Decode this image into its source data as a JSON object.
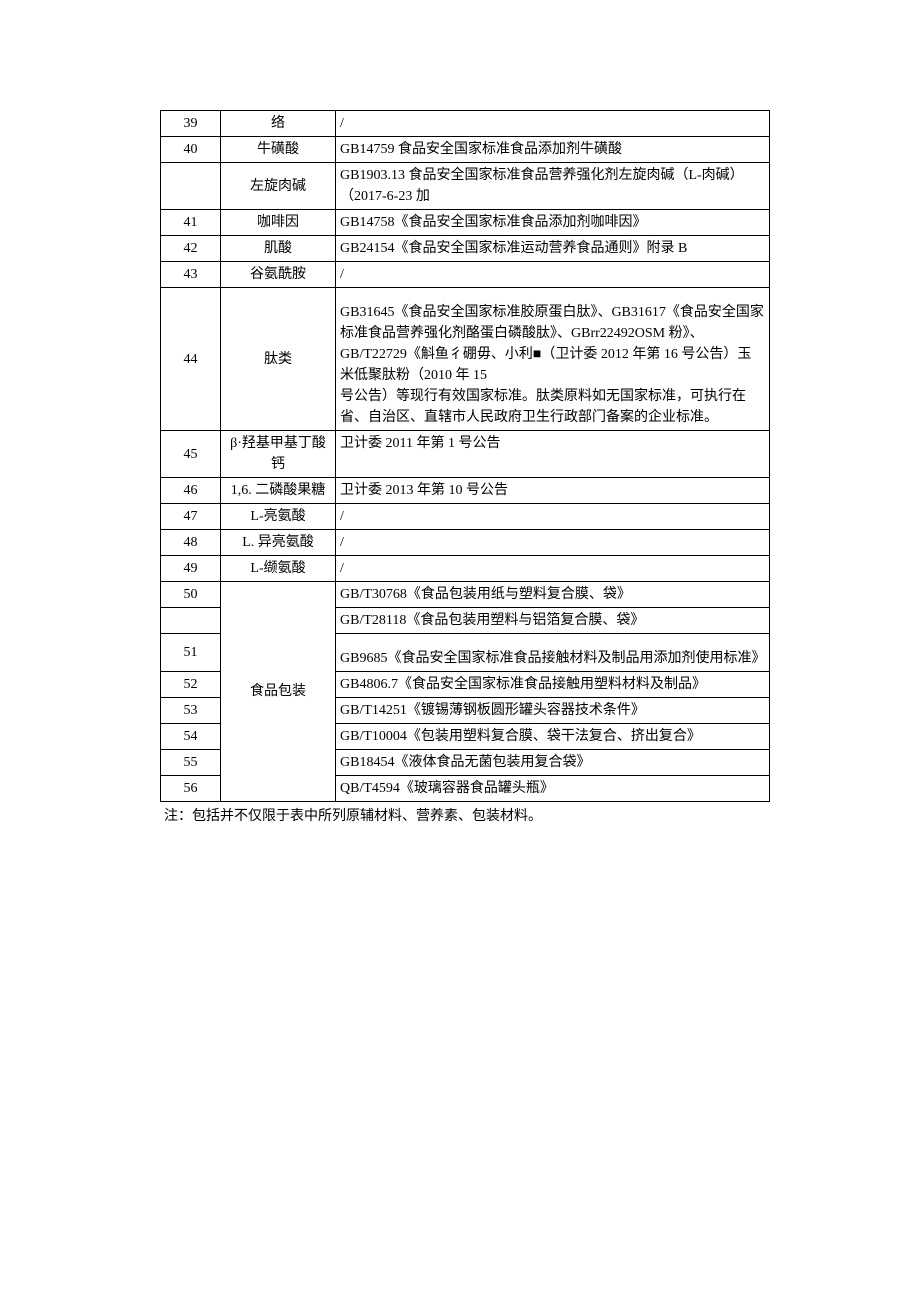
{
  "rows": [
    {
      "num": "39",
      "name": "络",
      "std": "/"
    },
    {
      "num": "40",
      "name": "牛磺酸",
      "std": "GB14759 食品安全国家标准食品添加剂牛磺酸"
    },
    {
      "num": "",
      "name": "左旋肉碱",
      "std": "GB1903.13 食品安全国家标准食品营养强化剂左旋肉碱（L-肉碱）（2017-6-23 加"
    },
    {
      "num": "41",
      "name": "咖啡因",
      "std": "GB14758《食品安全国家标准食品添加剂咖啡因》"
    },
    {
      "num": "42",
      "name": "肌酸",
      "std": "GB24154《食品安全国家标准运动营养食品通则》附录 B"
    },
    {
      "num": "43",
      "name": "谷氨酰胺",
      "std": "/"
    },
    {
      "num": "44",
      "name": "肽类",
      "std": "GB31645《食品安全国家标准胶原蛋白肽》、GB31617《食品安全国家标准食品营养强化剂酪蛋白磷酸肽》、GBrr22492OSM 粉》、GB/T22729《斛鱼彳硼毋、小利■（卫计委 2012 年第 16 号公告）玉米低聚肽粉（2010 年 15\n号公告）等现行有效国家标准。肽类原料如无国家标准，可执行在省、自治区、直辖市人民政府卫生行政部门备案的企业标准。",
      "tall": true
    },
    {
      "num": "45",
      "name": "β·羟基甲基丁酸钙",
      "std": "卫计委 2011 年第 1 号公告",
      "valign": "top"
    },
    {
      "num": "46",
      "name": "1,6. 二磷酸果糖",
      "std": "卫计委 2013 年第 10 号公告",
      "valign": "top"
    },
    {
      "num": "47",
      "name": "L-亮氨酸",
      "std": "/"
    },
    {
      "num": "48",
      "name": "L. 异亮氨酸",
      "std": "/"
    },
    {
      "num": "49",
      "name": "L-缬氨酸",
      "std": "/"
    }
  ],
  "pack_group": {
    "name": "食品包装",
    "items": [
      {
        "num": "50",
        "std": "GB/T30768《食品包装用纸与塑料复合膜、袋》"
      },
      {
        "num": "",
        "std": "GB/T28118《食品包装用塑料与铝箔复合膜、袋》"
      },
      {
        "num": "51",
        "std": "GB9685《食品安全国家标准食品接触材料及制品用添加剂使用标准》",
        "tall": true
      },
      {
        "num": "52",
        "std": "GB4806.7《食品安全国家标准食品接触用塑料材料及制品》"
      },
      {
        "num": "53",
        "std": "GB/T14251《镀锡薄钢板圆形罐头容器技术条件》"
      },
      {
        "num": "54",
        "std": "GB/T10004《包装用塑料复合膜、袋干法复合、挤出复合》"
      },
      {
        "num": "55",
        "std": "GB18454《液体食品无菌包装用复合袋》"
      },
      {
        "num": "56",
        "std": "QB/T4594《玻璃容器食品罐头瓶》"
      }
    ]
  },
  "note": "注：包括并不仅限于表中所列原辅材料、营养素、包装材料。"
}
